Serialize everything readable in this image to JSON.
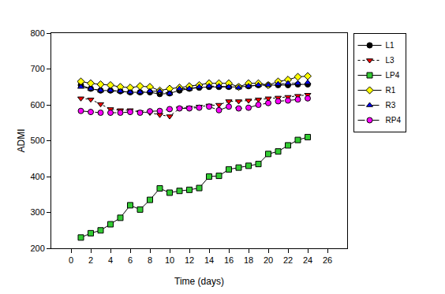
{
  "chart_data": {
    "type": "line",
    "x_label": "Time (days)",
    "y_label": "ADMI",
    "x": [
      1,
      2,
      3,
      4,
      5,
      6,
      7,
      8,
      9,
      10,
      11,
      12,
      13,
      14,
      15,
      16,
      17,
      18,
      19,
      20,
      21,
      22,
      23,
      24
    ],
    "xlim": [
      -2,
      28
    ],
    "xticks": [
      0,
      2,
      4,
      6,
      8,
      10,
      12,
      14,
      16,
      18,
      20,
      22,
      24,
      26
    ],
    "ylim": [
      200,
      800
    ],
    "yticks": [
      200,
      300,
      400,
      500,
      600,
      700,
      800
    ],
    "grid": false,
    "legend": "right",
    "series": [
      {
        "name": "L1",
        "color": "#000000",
        "marker": "circle",
        "line_style": "solid",
        "values": [
          655,
          645,
          640,
          640,
          638,
          635,
          635,
          635,
          630,
          632,
          640,
          645,
          648,
          650,
          650,
          650,
          650,
          652,
          655,
          655,
          655,
          655,
          657,
          657
        ]
      },
      {
        "name": "L3",
        "color": "#ff0000",
        "marker": "triangle-down",
        "line_style": "dot",
        "values": [
          618,
          615,
          602,
          588,
          585,
          585,
          580,
          578,
          572,
          568,
          590,
          592,
          595,
          598,
          600,
          610,
          610,
          612,
          615,
          618,
          620,
          622,
          625,
          628
        ]
      },
      {
        "name": "LP4",
        "color": "#33cc33",
        "marker": "square",
        "line_style": "solid",
        "values": [
          230,
          242,
          250,
          267,
          285,
          320,
          308,
          335,
          367,
          355,
          360,
          363,
          368,
          400,
          402,
          420,
          425,
          430,
          435,
          463,
          470,
          487,
          502,
          510
        ]
      },
      {
        "name": "R1",
        "color": "#ffff00",
        "marker": "diamond",
        "line_style": "solid",
        "values": [
          665,
          660,
          657,
          655,
          650,
          648,
          652,
          650,
          640,
          645,
          648,
          652,
          655,
          660,
          660,
          660,
          650,
          660,
          660,
          655,
          665,
          670,
          678,
          680
        ]
      },
      {
        "name": "R3",
        "color": "#0000ff",
        "marker": "triangle-up",
        "line_style": "dash",
        "values": [
          650,
          645,
          640,
          640,
          638,
          635,
          635,
          638,
          638,
          632,
          645,
          645,
          650,
          652,
          652,
          650,
          648,
          652,
          655,
          655,
          658,
          660,
          660,
          662
        ]
      },
      {
        "name": "RP4",
        "color": "#ff00ff",
        "marker": "circle",
        "line_style": "dash",
        "values": [
          583,
          580,
          578,
          578,
          578,
          580,
          578,
          582,
          583,
          588,
          590,
          590,
          592,
          595,
          585,
          595,
          590,
          592,
          600,
          605,
          610,
          612,
          615,
          618
        ]
      }
    ]
  }
}
